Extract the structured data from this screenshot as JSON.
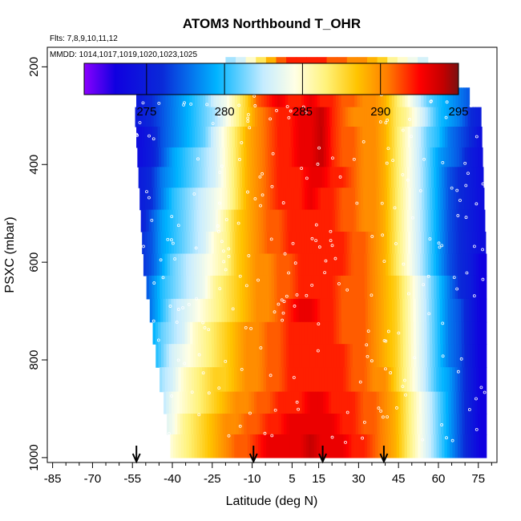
{
  "chart_data": {
    "type": "heatmap",
    "title": "ATOM3 Northbound T_OHR",
    "subtitle_flights": "Flts: 7,8,9,10,11,12",
    "subtitle_dates": "MMDD: 1014,1017,1019,1020,1023,1025",
    "xlabel": "Latitude (deg N)",
    "ylabel": "PSXC (mbar)",
    "xlim": [
      -87,
      82
    ],
    "ylim": [
      1010,
      160
    ],
    "x_ticks": [
      -85,
      -70,
      -55,
      -40,
      -25,
      -10,
      5,
      15,
      30,
      45,
      60,
      75
    ],
    "x_tick_labels": [
      "-85",
      "-70",
      "-55",
      "-40",
      "-25",
      "-10",
      "5",
      "15",
      "30",
      "45",
      "60",
      "75"
    ],
    "y_ticks": [
      200,
      400,
      600,
      800,
      1000
    ],
    "y_tick_labels": [
      "200",
      "400",
      "600",
      "800",
      "1000"
    ],
    "colorbar": {
      "min": 271,
      "max": 295,
      "ticks": [
        275,
        280,
        285,
        290,
        295
      ],
      "tick_labels": [
        "275",
        "280",
        "285",
        "290",
        "295"
      ],
      "stops": [
        {
          "v": 271,
          "c": "#8b00ff"
        },
        {
          "v": 273,
          "c": "#1000e0"
        },
        {
          "v": 276,
          "c": "#0a2ad8"
        },
        {
          "v": 279.5,
          "c": "#00b4ff"
        },
        {
          "v": 282.5,
          "c": "#c6ecff"
        },
        {
          "v": 284.5,
          "c": "#ffffe6"
        },
        {
          "v": 286.5,
          "c": "#fff27a"
        },
        {
          "v": 288.5,
          "c": "#ffc400"
        },
        {
          "v": 290.5,
          "c": "#ff7a00"
        },
        {
          "v": 292.5,
          "c": "#ff0000"
        },
        {
          "v": 294,
          "c": "#c40000"
        },
        {
          "v": 295,
          "c": "#7a1010"
        }
      ]
    },
    "profile_arrows_lat": [
      -53.5,
      -9.5,
      16.5,
      39.5
    ],
    "levels_mbar": [
      220,
      265,
      300,
      345,
      385,
      425,
      470,
      515,
      560,
      605,
      650,
      700,
      745,
      790,
      840,
      890,
      930,
      975
    ],
    "lat_bins": [
      -52,
      -48,
      -44,
      -40,
      -36,
      -32,
      -28,
      -24,
      -20,
      -16,
      -12,
      -8,
      -4,
      0,
      4,
      8,
      12,
      16,
      20,
      24,
      28,
      32,
      36,
      40,
      44,
      48,
      52,
      56,
      60,
      64,
      68,
      72,
      76
    ],
    "lat_extent_by_level": [
      {
        "p": 180,
        "lat": [
          -20,
          56
        ]
      },
      {
        "p": 220,
        "lat": [
          -53,
          66
        ]
      },
      {
        "p": 300,
        "lat": [
          -54,
          76
        ]
      },
      {
        "p": 600,
        "lat": [
          -51,
          78
        ]
      },
      {
        "p": 800,
        "lat": [
          -46,
          78
        ]
      },
      {
        "p": 1000,
        "lat": [
          -40,
          78
        ]
      }
    ],
    "temperature_K": [
      [
        276,
        277,
        278,
        279,
        280,
        281,
        282,
        283,
        284,
        286,
        288,
        291,
        292,
        293,
        292,
        292,
        293,
        292,
        291,
        291,
        290,
        290,
        289,
        289,
        287,
        285,
        283,
        281,
        280,
        279,
        278,
        277,
        276
      ],
      [
        275,
        276,
        277,
        278,
        279,
        280,
        281,
        283,
        284,
        286,
        288,
        291,
        292,
        293,
        292,
        292,
        293,
        292,
        292,
        291,
        291,
        290,
        290,
        289,
        287,
        285,
        283,
        281,
        280,
        279,
        278,
        277,
        276
      ],
      [
        275,
        276,
        277,
        278,
        279,
        280,
        281,
        282,
        284,
        286,
        288,
        290,
        291,
        292,
        292,
        293,
        293,
        294,
        292,
        291,
        290,
        290,
        290,
        289,
        287,
        286,
        284,
        282,
        280,
        279,
        278,
        276,
        275
      ],
      [
        274,
        275,
        277,
        278,
        279,
        280,
        281,
        283,
        285,
        287,
        289,
        290,
        291,
        292,
        292,
        293,
        293,
        294,
        292,
        291,
        291,
        290,
        290,
        289,
        287,
        285,
        283,
        281,
        280,
        278,
        277,
        276,
        274
      ],
      [
        274,
        275,
        277,
        279,
        280,
        281,
        282,
        283,
        285,
        287,
        289,
        290,
        291,
        292,
        292,
        293,
        293,
        294,
        292,
        291,
        291,
        290,
        290,
        289,
        287,
        285,
        283,
        281,
        279,
        278,
        277,
        275,
        274
      ],
      [
        275,
        276,
        278,
        279,
        280,
        281,
        282,
        283,
        285,
        287,
        289,
        290,
        291,
        292,
        292,
        292,
        293,
        293,
        292,
        292,
        291,
        290,
        290,
        289,
        287,
        285,
        283,
        281,
        279,
        277,
        276,
        275,
        274
      ],
      [
        275,
        276,
        278,
        280,
        281,
        282,
        283,
        284,
        285,
        287,
        289,
        290,
        291,
        292,
        292,
        292,
        293,
        292,
        292,
        291,
        291,
        290,
        290,
        289,
        287,
        285,
        283,
        281,
        279,
        277,
        276,
        275,
        274
      ],
      [
        275,
        277,
        279,
        280,
        281,
        282,
        283,
        284,
        286,
        288,
        289,
        290,
        291,
        291,
        292,
        292,
        292,
        292,
        292,
        291,
        291,
        290,
        290,
        289,
        287,
        285,
        283,
        281,
        279,
        277,
        276,
        275,
        274
      ],
      [
        276,
        277,
        279,
        280,
        281,
        282,
        283,
        285,
        286,
        288,
        289,
        290,
        291,
        291,
        292,
        292,
        292,
        292,
        292,
        292,
        291,
        291,
        290,
        289,
        287,
        285,
        283,
        281,
        279,
        277,
        276,
        275,
        274
      ],
      [
        276,
        277,
        279,
        281,
        282,
        283,
        284,
        285,
        286,
        288,
        289,
        290,
        290,
        291,
        291,
        292,
        292,
        292,
        292,
        292,
        291,
        291,
        290,
        289,
        287,
        285,
        283,
        281,
        279,
        277,
        276,
        275,
        273
      ],
      [
        276,
        278,
        280,
        281,
        282,
        283,
        284,
        286,
        287,
        288,
        289,
        290,
        290,
        291,
        291,
        292,
        292,
        292,
        292,
        291,
        291,
        291,
        290,
        289,
        288,
        286,
        284,
        282,
        280,
        278,
        276,
        275,
        273
      ],
      [
        277,
        278,
        280,
        282,
        283,
        284,
        285,
        286,
        287,
        288,
        289,
        290,
        290,
        291,
        292,
        293,
        293,
        292,
        292,
        291,
        291,
        291,
        290,
        289,
        288,
        286,
        284,
        282,
        280,
        278,
        277,
        275,
        273
      ],
      [
        277,
        279,
        281,
        282,
        283,
        285,
        286,
        287,
        288,
        289,
        290,
        290,
        291,
        291,
        292,
        292,
        292,
        292,
        292,
        291,
        291,
        291,
        290,
        289,
        288,
        286,
        284,
        282,
        280,
        278,
        277,
        275,
        273
      ],
      [
        278,
        279,
        281,
        283,
        284,
        285,
        286,
        287,
        288,
        289,
        290,
        290,
        291,
        291,
        292,
        292,
        292,
        292,
        292,
        292,
        291,
        291,
        290,
        289,
        288,
        286,
        284,
        282,
        280,
        278,
        277,
        275,
        273
      ],
      [
        278,
        280,
        282,
        283,
        285,
        286,
        287,
        288,
        288,
        289,
        290,
        290,
        291,
        291,
        292,
        292,
        292,
        292,
        292,
        292,
        291,
        291,
        290,
        290,
        288,
        286,
        284,
        282,
        280,
        279,
        277,
        275,
        273
      ],
      [
        279,
        281,
        282,
        284,
        285,
        286,
        287,
        288,
        289,
        290,
        290,
        291,
        291,
        292,
        292,
        292,
        293,
        293,
        292,
        292,
        292,
        291,
        291,
        290,
        289,
        287,
        285,
        283,
        281,
        279,
        277,
        275,
        273
      ],
      [
        279,
        281,
        283,
        284,
        286,
        287,
        288,
        289,
        290,
        290,
        291,
        291,
        292,
        292,
        293,
        293,
        293,
        293,
        293,
        292,
        292,
        291,
        291,
        290,
        289,
        287,
        285,
        283,
        281,
        279,
        277,
        275,
        273
      ],
      [
        280,
        282,
        283,
        285,
        286,
        287,
        288,
        289,
        290,
        291,
        291,
        292,
        293,
        293,
        293,
        293,
        294,
        293,
        293,
        293,
        292,
        292,
        291,
        290,
        289,
        287,
        285,
        283,
        281,
        279,
        277,
        275,
        273
      ]
    ]
  }
}
